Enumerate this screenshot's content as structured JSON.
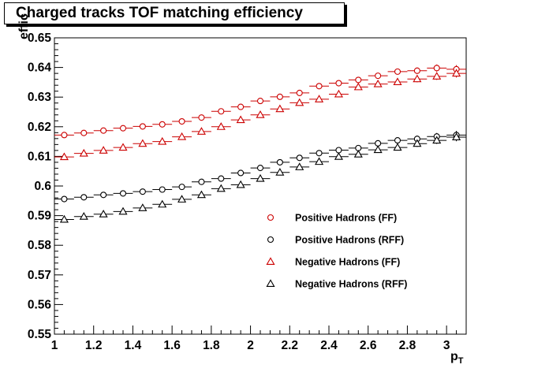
{
  "title": "Charged tracks TOF matching efficiency",
  "chart_data": {
    "type": "scatter",
    "xlabel": "p",
    "xlabel_sub": "T",
    "ylabel": "effic",
    "xlim": [
      1.0,
      3.1
    ],
    "ylim": [
      0.55,
      0.65
    ],
    "x_ticks": [
      "1",
      "1.2",
      "1.4",
      "1.6",
      "1.8",
      "2",
      "2.2",
      "2.4",
      "2.6",
      "2.8",
      "3"
    ],
    "y_ticks": [
      "0.55",
      "0.56",
      "0.57",
      "0.58",
      "0.59",
      "0.6",
      "0.61",
      "0.62",
      "0.63",
      "0.64",
      "0.65"
    ],
    "x": [
      1.05,
      1.15,
      1.25,
      1.35,
      1.45,
      1.55,
      1.65,
      1.75,
      1.85,
      1.95,
      2.05,
      2.15,
      2.25,
      2.35,
      2.45,
      2.55,
      2.65,
      2.75,
      2.85,
      2.95,
      3.05
    ],
    "x_error": 0.05,
    "legend_position": "lower-right",
    "series": [
      {
        "name": "Positive Hadrons (FF)",
        "marker": "circle",
        "color": "#cc0000",
        "values": [
          0.6172,
          0.6179,
          0.6187,
          0.6195,
          0.6201,
          0.6208,
          0.6218,
          0.6231,
          0.6252,
          0.6267,
          0.6287,
          0.6301,
          0.6314,
          0.6337,
          0.6347,
          0.6358,
          0.6372,
          0.6386,
          0.6389,
          0.6398,
          0.6394
        ],
        "y_err": [
          0.0006,
          0.0006,
          0.0006,
          0.0006,
          0.0006,
          0.0006,
          0.0006,
          0.0007,
          0.0007,
          0.0007,
          0.0007,
          0.0008,
          0.0008,
          0.0008,
          0.0009,
          0.0009,
          0.001,
          0.001,
          0.0011,
          0.0012,
          0.0014
        ]
      },
      {
        "name": "Positive Hadrons (RFF)",
        "marker": "circle",
        "color": "#000000",
        "values": [
          0.5956,
          0.5962,
          0.597,
          0.5975,
          0.5981,
          0.5988,
          0.5997,
          0.6014,
          0.6025,
          0.6044,
          0.6061,
          0.608,
          0.6095,
          0.6111,
          0.6121,
          0.6128,
          0.6144,
          0.6154,
          0.6159,
          0.6167,
          0.6172
        ],
        "y_err": [
          0.0006,
          0.0006,
          0.0006,
          0.0006,
          0.0006,
          0.0006,
          0.0006,
          0.0007,
          0.0007,
          0.0007,
          0.0007,
          0.0008,
          0.0008,
          0.0008,
          0.0009,
          0.0009,
          0.001,
          0.001,
          0.0011,
          0.0012,
          0.0014
        ]
      },
      {
        "name": "Negative Hadrons (FF)",
        "marker": "triangle",
        "color": "#cc0000",
        "values": [
          0.6098,
          0.611,
          0.612,
          0.613,
          0.6143,
          0.615,
          0.6166,
          0.6184,
          0.62,
          0.6223,
          0.624,
          0.626,
          0.6281,
          0.6293,
          0.631,
          0.6334,
          0.6344,
          0.6351,
          0.6361,
          0.637,
          0.638
        ],
        "y_err": [
          0.0006,
          0.0006,
          0.0006,
          0.0006,
          0.0006,
          0.0006,
          0.0006,
          0.0007,
          0.0007,
          0.0007,
          0.0007,
          0.0008,
          0.0008,
          0.0008,
          0.0009,
          0.0009,
          0.001,
          0.001,
          0.0011,
          0.0012,
          0.0014
        ]
      },
      {
        "name": "Negative Hadrons (RFF)",
        "marker": "triangle",
        "color": "#000000",
        "values": [
          0.5887,
          0.5897,
          0.5905,
          0.5914,
          0.5926,
          0.5938,
          0.5955,
          0.597,
          0.5991,
          0.6004,
          0.6025,
          0.6046,
          0.6064,
          0.6082,
          0.6099,
          0.6107,
          0.6122,
          0.613,
          0.6143,
          0.6154,
          0.6165
        ],
        "y_err": [
          0.0006,
          0.0006,
          0.0006,
          0.0006,
          0.0006,
          0.0006,
          0.0006,
          0.0007,
          0.0007,
          0.0007,
          0.0007,
          0.0008,
          0.0008,
          0.0008,
          0.0009,
          0.0009,
          0.001,
          0.001,
          0.0011,
          0.0012,
          0.0014
        ]
      }
    ]
  }
}
